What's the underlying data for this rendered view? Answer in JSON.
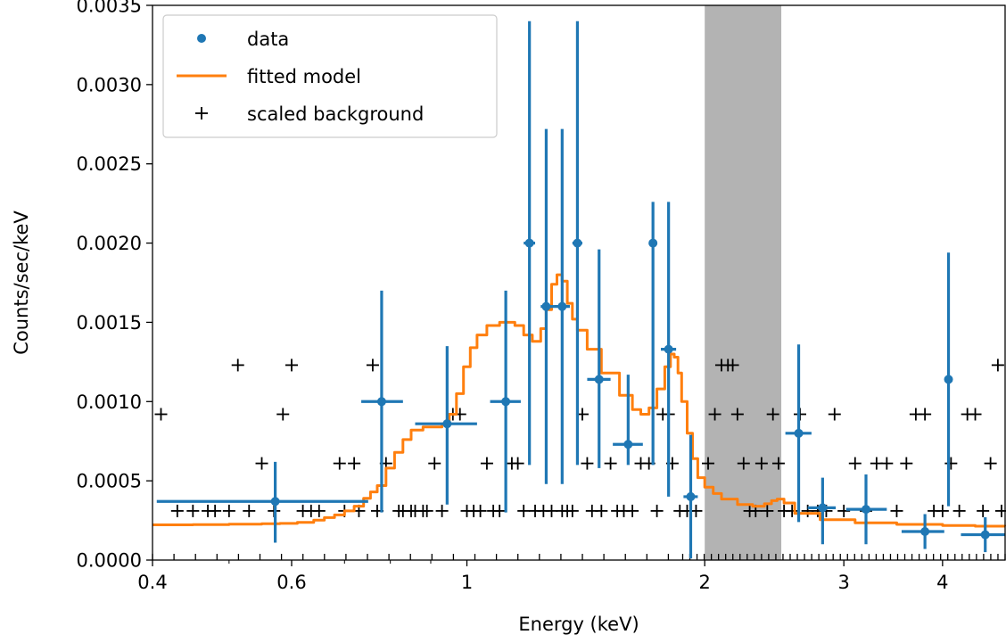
{
  "chart_data": {
    "type": "scatter",
    "xlabel": "Energy (keV)",
    "ylabel": "Counts/sec/keV",
    "x_scale": "log",
    "xlim": [
      0.4,
      4.8
    ],
    "ylim": [
      0,
      0.0035
    ],
    "x_ticks": [
      0.4,
      0.6,
      1,
      2,
      3,
      4
    ],
    "x_tick_labels": [
      "0.4",
      "0.6",
      "1",
      "2",
      "3",
      "4"
    ],
    "y_ticks": [
      0,
      0.0005,
      0.001,
      0.0015,
      0.002,
      0.0025,
      0.003,
      0.0035
    ],
    "y_tick_labels": [
      "0.0000",
      "0.0005",
      "0.0010",
      "0.0015",
      "0.0020",
      "0.0025",
      "0.0030",
      "0.0035"
    ],
    "grid": false,
    "legend_position": "top-left",
    "ignored_band": {
      "x0": 2.0,
      "x1": 2.5,
      "color": "#b3b3b3"
    },
    "colors": {
      "data": "#1f77b4",
      "model": "#ff7f0e",
      "background": "#000000"
    },
    "series": [
      {
        "name": "data",
        "kind": "errorbar",
        "color": "#1f77b4",
        "points": [
          {
            "x": 0.572,
            "y": 0.00037,
            "xlo": 0.405,
            "xhi": 0.75,
            "ylo": 0.00011,
            "yhi": 0.00062
          },
          {
            "x": 0.78,
            "y": 0.001,
            "xlo": 0.735,
            "xhi": 0.83,
            "ylo": 0.0003,
            "yhi": 0.0017
          },
          {
            "x": 0.944,
            "y": 0.00086,
            "xlo": 0.86,
            "xhi": 1.03,
            "ylo": 0.00035,
            "yhi": 0.00135
          },
          {
            "x": 1.12,
            "y": 0.001,
            "xlo": 1.07,
            "xhi": 1.17,
            "ylo": 0.0003,
            "yhi": 0.0017
          },
          {
            "x": 1.2,
            "y": 0.002,
            "xlo": 1.18,
            "xhi": 1.22,
            "ylo": 0.0006,
            "yhi": 0.0034
          },
          {
            "x": 1.26,
            "y": 0.0016,
            "xlo": 1.24,
            "xhi": 1.29,
            "ylo": 0.00048,
            "yhi": 0.00272
          },
          {
            "x": 1.32,
            "y": 0.0016,
            "xlo": 1.29,
            "xhi": 1.35,
            "ylo": 0.00048,
            "yhi": 0.00272
          },
          {
            "x": 1.38,
            "y": 0.002,
            "xlo": 1.36,
            "xhi": 1.4,
            "ylo": 0.0006,
            "yhi": 0.0034
          },
          {
            "x": 1.47,
            "y": 0.00114,
            "xlo": 1.42,
            "xhi": 1.52,
            "ylo": 0.00058,
            "yhi": 0.00196
          },
          {
            "x": 1.6,
            "y": 0.00073,
            "xlo": 1.53,
            "xhi": 1.67,
            "ylo": 0.0006,
            "yhi": 0.00117
          },
          {
            "x": 1.72,
            "y": 0.002,
            "xlo": 1.7,
            "xhi": 1.74,
            "ylo": 0.0006,
            "yhi": 0.00226
          },
          {
            "x": 1.8,
            "y": 0.00133,
            "xlo": 1.76,
            "xhi": 1.84,
            "ylo": 0.0004,
            "yhi": 0.00226
          },
          {
            "x": 1.92,
            "y": 0.0004,
            "xlo": 1.88,
            "xhi": 1.96,
            "ylo": 1e-05,
            "yhi": 0.00079
          },
          {
            "x": 2.63,
            "y": 0.0008,
            "xlo": 2.53,
            "xhi": 2.73,
            "ylo": 0.00024,
            "yhi": 0.00136
          },
          {
            "x": 2.82,
            "y": 0.00033,
            "xlo": 2.7,
            "xhi": 2.93,
            "ylo": 0.0001,
            "yhi": 0.00052
          },
          {
            "x": 3.2,
            "y": 0.00032,
            "xlo": 3.02,
            "xhi": 3.4,
            "ylo": 0.0001,
            "yhi": 0.00054
          },
          {
            "x": 3.8,
            "y": 0.00018,
            "xlo": 3.55,
            "xhi": 4.02,
            "ylo": 7e-05,
            "yhi": 0.00029
          },
          {
            "x": 4.07,
            "y": 0.00114,
            "xlo": 4.03,
            "xhi": 4.11,
            "ylo": 0.00034,
            "yhi": 0.00194
          },
          {
            "x": 4.53,
            "y": 0.00016,
            "xlo": 4.22,
            "xhi": 4.8,
            "ylo": 5e-05,
            "yhi": 0.00027
          }
        ]
      },
      {
        "name": "fitted model",
        "kind": "line",
        "color": "#ff7f0e",
        "x": [
          0.4,
          0.45,
          0.5,
          0.55,
          0.58,
          0.61,
          0.64,
          0.66,
          0.68,
          0.7,
          0.72,
          0.74,
          0.755,
          0.77,
          0.79,
          0.81,
          0.83,
          0.85,
          0.88,
          0.91,
          0.93,
          0.95,
          0.97,
          0.99,
          1.01,
          1.03,
          1.06,
          1.1,
          1.15,
          1.18,
          1.21,
          1.24,
          1.26,
          1.28,
          1.3,
          1.32,
          1.34,
          1.36,
          1.38,
          1.42,
          1.48,
          1.56,
          1.62,
          1.66,
          1.7,
          1.74,
          1.78,
          1.81,
          1.83,
          1.85,
          1.87,
          1.9,
          1.93,
          1.96,
          2.0,
          2.05,
          2.1,
          2.2,
          2.3,
          2.38,
          2.43,
          2.47,
          2.52,
          2.6,
          2.8,
          3.1,
          3.5,
          4.0,
          4.4,
          4.8
        ],
        "y": [
          0.000222,
          0.000224,
          0.000226,
          0.000229,
          0.000231,
          0.000238,
          0.000252,
          0.000268,
          0.000285,
          0.00031,
          0.00034,
          0.00039,
          0.00043,
          0.00047,
          0.00058,
          0.00068,
          0.00076,
          0.00082,
          0.00084,
          0.00084,
          0.00086,
          0.00092,
          0.00105,
          0.00122,
          0.00134,
          0.00142,
          0.00148,
          0.0015,
          0.00148,
          0.00142,
          0.00138,
          0.00146,
          0.00158,
          0.00174,
          0.0018,
          0.00176,
          0.00162,
          0.00152,
          0.00145,
          0.00133,
          0.00118,
          0.00104,
          0.00095,
          0.00092,
          0.00096,
          0.00108,
          0.00122,
          0.0013,
          0.00128,
          0.00118,
          0.001,
          0.0008,
          0.00064,
          0.00052,
          0.00046,
          0.00042,
          0.000385,
          0.00035,
          0.00034,
          0.000355,
          0.000375,
          0.000385,
          0.00036,
          0.000295,
          0.000255,
          0.000235,
          0.000225,
          0.000218,
          0.000214,
          0.000212
        ]
      },
      {
        "name": "scaled background",
        "kind": "scatter",
        "marker": "+",
        "color": "#000000",
        "points": [
          [
            0.41,
            0.00092
          ],
          [
            0.43,
            0.00031
          ],
          [
            0.45,
            0.00031
          ],
          [
            0.47,
            0.00031
          ],
          [
            0.48,
            0.00031
          ],
          [
            0.5,
            0.00031
          ],
          [
            0.513,
            0.00123
          ],
          [
            0.53,
            0.00031
          ],
          [
            0.55,
            0.00061
          ],
          [
            0.57,
            0.00031
          ],
          [
            0.585,
            0.00092
          ],
          [
            0.6,
            0.00123
          ],
          [
            0.62,
            0.00031
          ],
          [
            0.635,
            0.00031
          ],
          [
            0.65,
            0.00031
          ],
          [
            0.69,
            0.00061
          ],
          [
            0.7,
            0.00031
          ],
          [
            0.72,
            0.00061
          ],
          [
            0.73,
            0.00031
          ],
          [
            0.76,
            0.00123
          ],
          [
            0.77,
            0.00031
          ],
          [
            0.79,
            0.00061
          ],
          [
            0.82,
            0.00031
          ],
          [
            0.83,
            0.00031
          ],
          [
            0.85,
            0.00031
          ],
          [
            0.86,
            0.00031
          ],
          [
            0.88,
            0.00031
          ],
          [
            0.89,
            0.00031
          ],
          [
            0.91,
            0.00061
          ],
          [
            0.93,
            0.00031
          ],
          [
            0.96,
            0.00092
          ],
          [
            0.98,
            0.00092
          ],
          [
            1.0,
            0.00031
          ],
          [
            1.02,
            0.00031
          ],
          [
            1.04,
            0.00031
          ],
          [
            1.06,
            0.00061
          ],
          [
            1.08,
            0.00031
          ],
          [
            1.1,
            0.00031
          ],
          [
            1.14,
            0.00061
          ],
          [
            1.16,
            0.00061
          ],
          [
            1.18,
            0.00031
          ],
          [
            1.22,
            0.00031
          ],
          [
            1.25,
            0.00031
          ],
          [
            1.28,
            0.00031
          ],
          [
            1.32,
            0.00031
          ],
          [
            1.34,
            0.00031
          ],
          [
            1.36,
            0.00031
          ],
          [
            1.4,
            0.00092
          ],
          [
            1.42,
            0.00061
          ],
          [
            1.44,
            0.00031
          ],
          [
            1.48,
            0.00031
          ],
          [
            1.52,
            0.00061
          ],
          [
            1.55,
            0.00031
          ],
          [
            1.58,
            0.00031
          ],
          [
            1.62,
            0.00031
          ],
          [
            1.66,
            0.00061
          ],
          [
            1.7,
            0.00061
          ],
          [
            1.74,
            0.00031
          ],
          [
            1.77,
            0.00092
          ],
          [
            1.8,
            0.00092
          ],
          [
            1.82,
            0.00061
          ],
          [
            1.86,
            0.00031
          ],
          [
            1.9,
            0.00031
          ],
          [
            1.95,
            0.00031
          ],
          [
            2.02,
            0.00061
          ],
          [
            2.06,
            0.00092
          ],
          [
            2.1,
            0.00123
          ],
          [
            2.14,
            0.00123
          ],
          [
            2.17,
            0.00123
          ],
          [
            2.2,
            0.00092
          ],
          [
            2.24,
            0.00061
          ],
          [
            2.28,
            0.00031
          ],
          [
            2.32,
            0.00031
          ],
          [
            2.36,
            0.00061
          ],
          [
            2.4,
            0.00031
          ],
          [
            2.44,
            0.00092
          ],
          [
            2.48,
            0.00061
          ],
          [
            2.52,
            0.00031
          ],
          [
            2.58,
            0.00031
          ],
          [
            2.64,
            0.00092
          ],
          [
            2.7,
            0.00031
          ],
          [
            2.78,
            0.00031
          ],
          [
            2.85,
            0.00031
          ],
          [
            2.92,
            0.00092
          ],
          [
            3.0,
            0.00031
          ],
          [
            3.1,
            0.00061
          ],
          [
            3.2,
            0.00031
          ],
          [
            3.3,
            0.00061
          ],
          [
            3.4,
            0.00061
          ],
          [
            3.5,
            0.00031
          ],
          [
            3.6,
            0.00061
          ],
          [
            3.7,
            0.00092
          ],
          [
            3.8,
            0.00092
          ],
          [
            3.9,
            0.00031
          ],
          [
            4.0,
            0.00031
          ],
          [
            4.1,
            0.00061
          ],
          [
            4.2,
            0.00031
          ],
          [
            4.3,
            0.00092
          ],
          [
            4.4,
            0.00092
          ],
          [
            4.5,
            0.00031
          ],
          [
            4.6,
            0.00061
          ],
          [
            4.7,
            0.00123
          ],
          [
            4.75,
            0.00031
          ]
        ]
      }
    ]
  }
}
